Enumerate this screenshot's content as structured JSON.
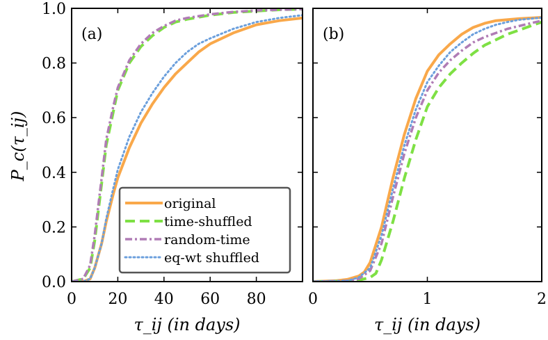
{
  "colors": {
    "original": "#f9a84a",
    "time_shuffled": "#7ee044",
    "random_time": "#b07cb5",
    "eq_wt_shuffled": "#6b9fdc"
  },
  "ylabel": "P_c(τ_ij)",
  "legend": {
    "placement": "lower-right",
    "entries": [
      "original",
      "time-shuffled",
      "random-time",
      "eq-wt shuffled"
    ]
  },
  "chart_data": [
    {
      "type": "line",
      "panel": "(a)",
      "xlabel": "τ_ij (in days)",
      "ylabel": "P_c(τ_ij)",
      "xlim": [
        0,
        100
      ],
      "ylim": [
        0,
        1.0
      ],
      "xticks": [
        "0",
        "20",
        "40",
        "60",
        "80"
      ],
      "xtick_values": [
        0,
        20,
        40,
        60,
        80
      ],
      "yticks": [
        "0.0",
        "0.2",
        "0.4",
        "0.6",
        "0.8",
        "1.0"
      ],
      "ytick_values": [
        0,
        0.2,
        0.4,
        0.6,
        0.8,
        1.0
      ],
      "series": [
        {
          "name": "original",
          "style": "solid",
          "x": [
            0,
            5,
            8,
            10,
            13,
            15,
            18,
            20,
            25,
            30,
            35,
            40,
            45,
            50,
            55,
            60,
            70,
            80,
            90,
            100
          ],
          "y": [
            0,
            0,
            0.01,
            0.05,
            0.14,
            0.22,
            0.32,
            0.38,
            0.49,
            0.58,
            0.65,
            0.71,
            0.76,
            0.8,
            0.84,
            0.87,
            0.91,
            0.94,
            0.955,
            0.965
          ]
        },
        {
          "name": "time-shuffled",
          "style": "dashed",
          "x": [
            0,
            5,
            8,
            10,
            13,
            15,
            18,
            20,
            25,
            30,
            35,
            40,
            45,
            50,
            60,
            70,
            80,
            90,
            100
          ],
          "y": [
            0,
            0.01,
            0.05,
            0.15,
            0.36,
            0.5,
            0.62,
            0.7,
            0.8,
            0.86,
            0.9,
            0.93,
            0.95,
            0.96,
            0.975,
            0.985,
            0.99,
            0.995,
            0.997
          ]
        },
        {
          "name": "random-time",
          "style": "dashdot",
          "x": [
            0,
            5,
            8,
            10,
            13,
            15,
            18,
            20,
            25,
            30,
            35,
            40,
            45,
            50,
            60,
            70,
            80,
            90,
            100
          ],
          "y": [
            0,
            0.01,
            0.06,
            0.17,
            0.38,
            0.52,
            0.64,
            0.71,
            0.81,
            0.87,
            0.91,
            0.935,
            0.955,
            0.965,
            0.978,
            0.987,
            0.992,
            0.995,
            0.997
          ]
        },
        {
          "name": "eq-wt shuffled",
          "style": "dotted",
          "x": [
            0,
            5,
            8,
            10,
            13,
            15,
            18,
            20,
            25,
            30,
            35,
            40,
            45,
            50,
            55,
            60,
            70,
            80,
            90,
            100
          ],
          "y": [
            0,
            0,
            0.01,
            0.05,
            0.14,
            0.23,
            0.34,
            0.41,
            0.53,
            0.62,
            0.69,
            0.75,
            0.8,
            0.84,
            0.87,
            0.89,
            0.925,
            0.95,
            0.965,
            0.975
          ]
        }
      ]
    },
    {
      "type": "line",
      "panel": "(b)",
      "xlabel": "τ_ij (in days)",
      "xlim": [
        0,
        2
      ],
      "ylim": [
        0,
        1.0
      ],
      "xticks": [
        "0",
        "1",
        "2"
      ],
      "xtick_values": [
        0,
        1,
        2
      ],
      "series": [
        {
          "name": "original",
          "style": "solid",
          "x": [
            0,
            0.2,
            0.3,
            0.4,
            0.45,
            0.5,
            0.6,
            0.7,
            0.8,
            0.9,
            1.0,
            1.1,
            1.2,
            1.3,
            1.4,
            1.5,
            1.6,
            1.8,
            2.0
          ],
          "y": [
            0,
            0.003,
            0.008,
            0.02,
            0.035,
            0.07,
            0.2,
            0.38,
            0.54,
            0.67,
            0.77,
            0.83,
            0.87,
            0.905,
            0.93,
            0.945,
            0.955,
            0.962,
            0.967
          ]
        },
        {
          "name": "time-shuffled",
          "style": "dashed",
          "x": [
            0,
            0.3,
            0.4,
            0.5,
            0.55,
            0.6,
            0.7,
            0.8,
            0.9,
            1.0,
            1.1,
            1.2,
            1.3,
            1.4,
            1.5,
            1.6,
            1.7,
            1.8,
            1.9,
            2.0
          ],
          "y": [
            0,
            0.002,
            0.005,
            0.015,
            0.03,
            0.08,
            0.22,
            0.38,
            0.52,
            0.64,
            0.71,
            0.76,
            0.8,
            0.835,
            0.865,
            0.885,
            0.905,
            0.92,
            0.935,
            0.95
          ]
        },
        {
          "name": "random-time",
          "style": "dashdot",
          "x": [
            0,
            0.3,
            0.4,
            0.5,
            0.6,
            0.7,
            0.8,
            0.9,
            1.0,
            1.1,
            1.2,
            1.3,
            1.4,
            1.5,
            1.6,
            1.7,
            1.8,
            1.9,
            2.0
          ],
          "y": [
            0,
            0.003,
            0.01,
            0.04,
            0.14,
            0.31,
            0.47,
            0.6,
            0.7,
            0.765,
            0.81,
            0.845,
            0.875,
            0.895,
            0.91,
            0.925,
            0.935,
            0.945,
            0.955
          ]
        },
        {
          "name": "eq-wt shuffled",
          "style": "dotted",
          "x": [
            0,
            0.3,
            0.4,
            0.5,
            0.6,
            0.7,
            0.8,
            0.9,
            1.0,
            1.1,
            1.2,
            1.3,
            1.4,
            1.5,
            1.6,
            1.7,
            1.8,
            1.9,
            2.0
          ],
          "y": [
            0,
            0.003,
            0.015,
            0.05,
            0.17,
            0.34,
            0.5,
            0.63,
            0.73,
            0.79,
            0.84,
            0.875,
            0.905,
            0.925,
            0.94,
            0.95,
            0.958,
            0.962,
            0.966
          ]
        }
      ]
    }
  ]
}
